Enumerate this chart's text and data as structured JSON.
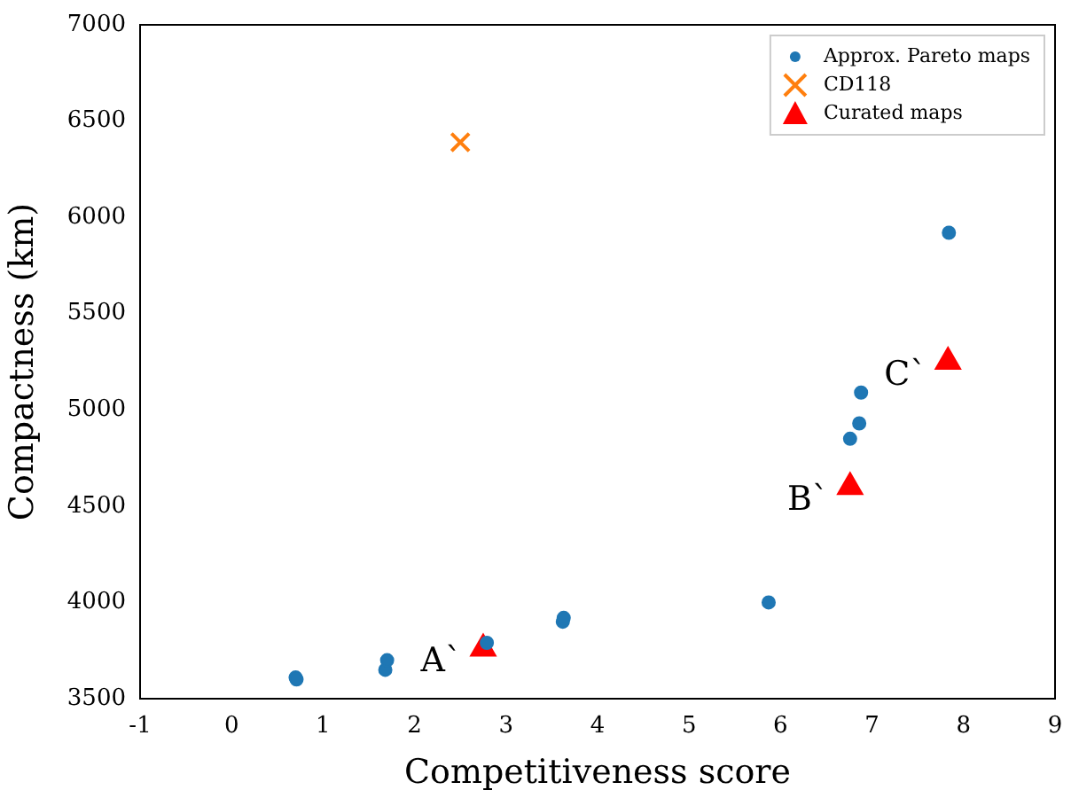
{
  "chart_data": {
    "type": "scatter",
    "xlabel": "Competitiveness score",
    "ylabel": "Compactness (km)",
    "xlim": [
      -1,
      9
    ],
    "xticks": [
      -1,
      0,
      1,
      2,
      3,
      4,
      5,
      6,
      7,
      8,
      9
    ],
    "ylim": [
      3500,
      7000
    ],
    "yticks": [
      3500,
      4000,
      4500,
      5000,
      5500,
      6000,
      6500,
      7000
    ],
    "grid": false,
    "legend": "top right",
    "series": [
      {
        "name": "Approx. Pareto maps",
        "color": "#1f77b4",
        "marker": "circle",
        "x": [
          0.7,
          0.71,
          1.68,
          1.7,
          2.79,
          3.62,
          3.63,
          5.87,
          6.76,
          6.86,
          6.88,
          7.84
        ],
        "values": [
          3610,
          3600,
          3650,
          3700,
          3790,
          3900,
          3920,
          4000,
          4850,
          4930,
          5090,
          5920
        ]
      },
      {
        "name": "CD118",
        "color": "#ff7f0e",
        "marker": "cross",
        "x": [
          2.5
        ],
        "values": [
          6390
        ]
      },
      {
        "name": "Curated maps",
        "color": "#ff0000",
        "marker": "triangle",
        "x": [
          2.75,
          6.76,
          7.83
        ],
        "values": [
          3760,
          4600,
          5250
        ]
      }
    ],
    "annotations": [
      {
        "text": "A`",
        "x": 2.75,
        "y": 3760
      },
      {
        "text": "B`",
        "x": 6.76,
        "y": 4600
      },
      {
        "text": "C`",
        "x": 7.83,
        "y": 5250
      }
    ]
  }
}
